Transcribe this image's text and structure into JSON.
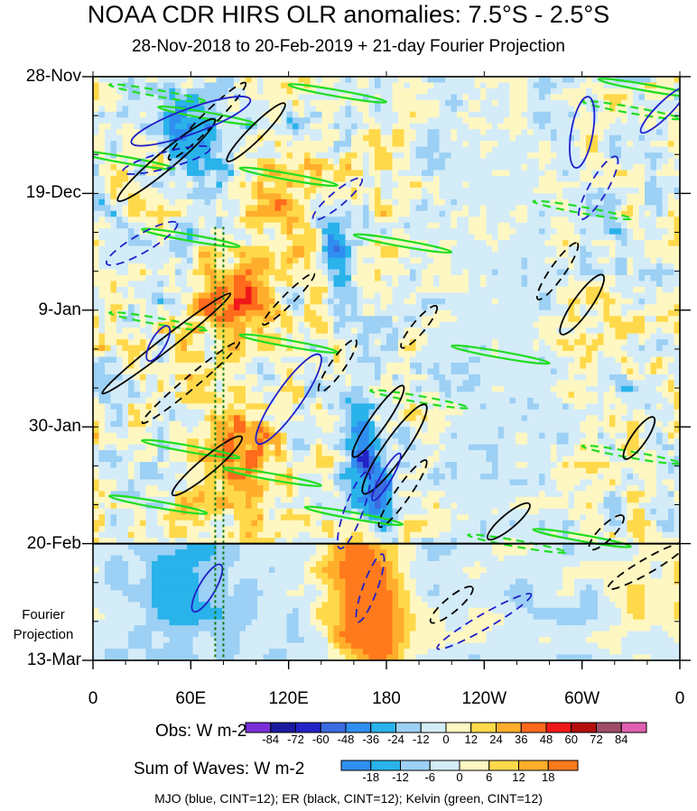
{
  "chart_data": {
    "type": "heatmap",
    "title": "NOAA CDR HIRS OLR anomalies: 7.5°S - 2.5°S",
    "subtitle": "28-Nov-2018 to 20-Feb-2019 + 21-day Fourier Projection",
    "y_tick_labels": [
      "28-Nov",
      "19-Dec",
      "9-Jan",
      "30-Jan",
      "20-Feb",
      "13-Mar"
    ],
    "y_tick_days": [
      0,
      21,
      42,
      63,
      84,
      105
    ],
    "x_tick_labels": [
      "0",
      "60E",
      "120E",
      "180",
      "120W",
      "60W",
      "0"
    ],
    "x_tick_lons": [
      0,
      60,
      120,
      180,
      240,
      300,
      360
    ],
    "projection_label": "Fourier Projection",
    "observation_end_day": 84,
    "obs_colorbar": {
      "title": "Obs: W m-2",
      "levels": [
        -84,
        -72,
        -60,
        -48,
        -36,
        -24,
        -12,
        0,
        12,
        24,
        36,
        48,
        60,
        72,
        84
      ],
      "colors": [
        "#7b2fd9",
        "#1a1a9e",
        "#2323c8",
        "#3b6be0",
        "#2f8ff0",
        "#29b3ea",
        "#9cd0f5",
        "#d4ecf8",
        "#fff7c2",
        "#ffd94a",
        "#ffae2b",
        "#ff6a1c",
        "#f01818",
        "#b40e0e",
        "#a04a6a",
        "#e060b0"
      ]
    },
    "waves_colorbar": {
      "title": "Sum of Waves: W m-2",
      "levels": [
        -18,
        -12,
        -6,
        0,
        6,
        12,
        18
      ],
      "colors": [
        "#2f8ff0",
        "#29b3ea",
        "#9cd0f5",
        "#d4ecf8",
        "#fff7c2",
        "#ffd94a",
        "#ffae2b",
        "#ff7a1c"
      ]
    },
    "contour_overlays": [
      {
        "name": "MJO",
        "color": "#2020c8",
        "cint": 12
      },
      {
        "name": "ER",
        "color": "#000000",
        "cint": 12
      },
      {
        "name": "Kelvin",
        "color": "#22dd22",
        "cint": 12
      }
    ],
    "footer": "MJO (blue, CINT=12); ER (black, CINT=12); Kelvin (green, CINT=12)"
  }
}
